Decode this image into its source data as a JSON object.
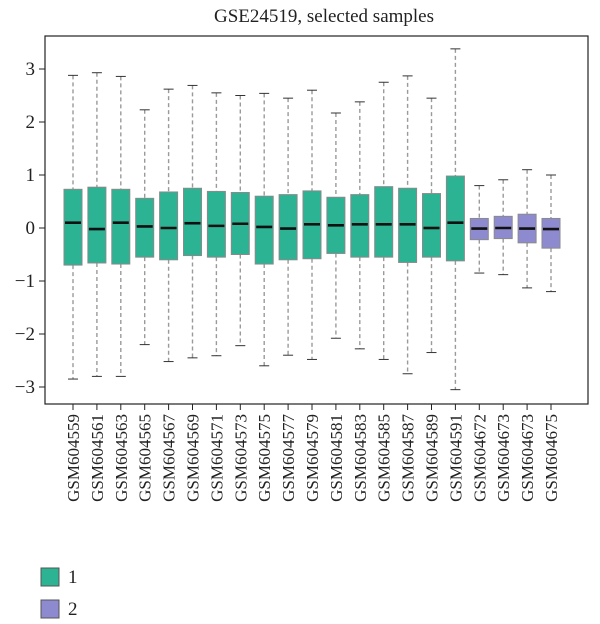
{
  "chart_data": {
    "type": "box",
    "title": "GSE24519, selected samples",
    "xlabel": "",
    "ylabel": "",
    "ylim": [
      -3.3,
      3.6
    ],
    "yticks": [
      -3,
      -2,
      -1,
      0,
      1,
      2,
      3
    ],
    "grid": false,
    "legend_position": "bottom-left",
    "colors": {
      "group1": "#2bb394",
      "group2": "#8e8ad0"
    },
    "legend": [
      {
        "label": "1",
        "group": "1"
      },
      {
        "label": "2",
        "group": "2"
      }
    ],
    "boxes": [
      {
        "sample": "GSM604559",
        "group": "1",
        "min": -2.85,
        "q1": -0.7,
        "median": 0.1,
        "q3": 0.73,
        "max": 2.88
      },
      {
        "sample": "GSM604561",
        "group": "1",
        "min": -2.8,
        "q1": -0.66,
        "median": -0.02,
        "q3": 0.77,
        "max": 2.93
      },
      {
        "sample": "GSM604563",
        "group": "1",
        "min": -2.8,
        "q1": -0.68,
        "median": 0.1,
        "q3": 0.73,
        "max": 2.86
      },
      {
        "sample": "GSM604565",
        "group": "1",
        "min": -2.2,
        "q1": -0.55,
        "median": 0.03,
        "q3": 0.56,
        "max": 2.23
      },
      {
        "sample": "GSM604567",
        "group": "1",
        "min": -2.52,
        "q1": -0.6,
        "median": 0.0,
        "q3": 0.68,
        "max": 2.62
      },
      {
        "sample": "GSM604569",
        "group": "1",
        "min": -2.45,
        "q1": -0.52,
        "median": 0.09,
        "q3": 0.75,
        "max": 2.69
      },
      {
        "sample": "GSM604571",
        "group": "1",
        "min": -2.41,
        "q1": -0.55,
        "median": 0.04,
        "q3": 0.69,
        "max": 2.55
      },
      {
        "sample": "GSM604573",
        "group": "1",
        "min": -2.22,
        "q1": -0.5,
        "median": 0.08,
        "q3": 0.67,
        "max": 2.5
      },
      {
        "sample": "GSM604575",
        "group": "1",
        "min": -2.6,
        "q1": -0.68,
        "median": 0.02,
        "q3": 0.6,
        "max": 2.54
      },
      {
        "sample": "GSM604577",
        "group": "1",
        "min": -2.4,
        "q1": -0.6,
        "median": -0.01,
        "q3": 0.63,
        "max": 2.45
      },
      {
        "sample": "GSM604579",
        "group": "1",
        "min": -2.48,
        "q1": -0.58,
        "median": 0.07,
        "q3": 0.7,
        "max": 2.6
      },
      {
        "sample": "GSM604581",
        "group": "1",
        "min": -2.08,
        "q1": -0.48,
        "median": 0.05,
        "q3": 0.58,
        "max": 2.17
      },
      {
        "sample": "GSM604583",
        "group": "1",
        "min": -2.28,
        "q1": -0.55,
        "median": 0.07,
        "q3": 0.63,
        "max": 2.38
      },
      {
        "sample": "GSM604585",
        "group": "1",
        "min": -2.48,
        "q1": -0.55,
        "median": 0.07,
        "q3": 0.78,
        "max": 2.75
      },
      {
        "sample": "GSM604587",
        "group": "1",
        "min": -2.75,
        "q1": -0.65,
        "median": 0.07,
        "q3": 0.75,
        "max": 2.87
      },
      {
        "sample": "GSM604589",
        "group": "1",
        "min": -2.35,
        "q1": -0.55,
        "median": 0.0,
        "q3": 0.65,
        "max": 2.45
      },
      {
        "sample": "GSM604591",
        "group": "1",
        "min": -3.05,
        "q1": -0.62,
        "median": 0.1,
        "q3": 0.98,
        "max": 3.38
      },
      {
        "sample": "GSM604672",
        "group": "2",
        "min": -0.85,
        "q1": -0.22,
        "median": -0.01,
        "q3": 0.18,
        "max": 0.8
      },
      {
        "sample": "GSM604673",
        "group": "2",
        "min": -0.88,
        "q1": -0.2,
        "median": 0.0,
        "q3": 0.22,
        "max": 0.91
      },
      {
        "sample": "GSM604673",
        "group": "2",
        "min": -1.13,
        "q1": -0.28,
        "median": -0.01,
        "q3": 0.26,
        "max": 1.1
      },
      {
        "sample": "GSM604675",
        "group": "2",
        "min": -1.2,
        "q1": -0.38,
        "median": -0.02,
        "q3": 0.18,
        "max": 1.0
      }
    ]
  }
}
